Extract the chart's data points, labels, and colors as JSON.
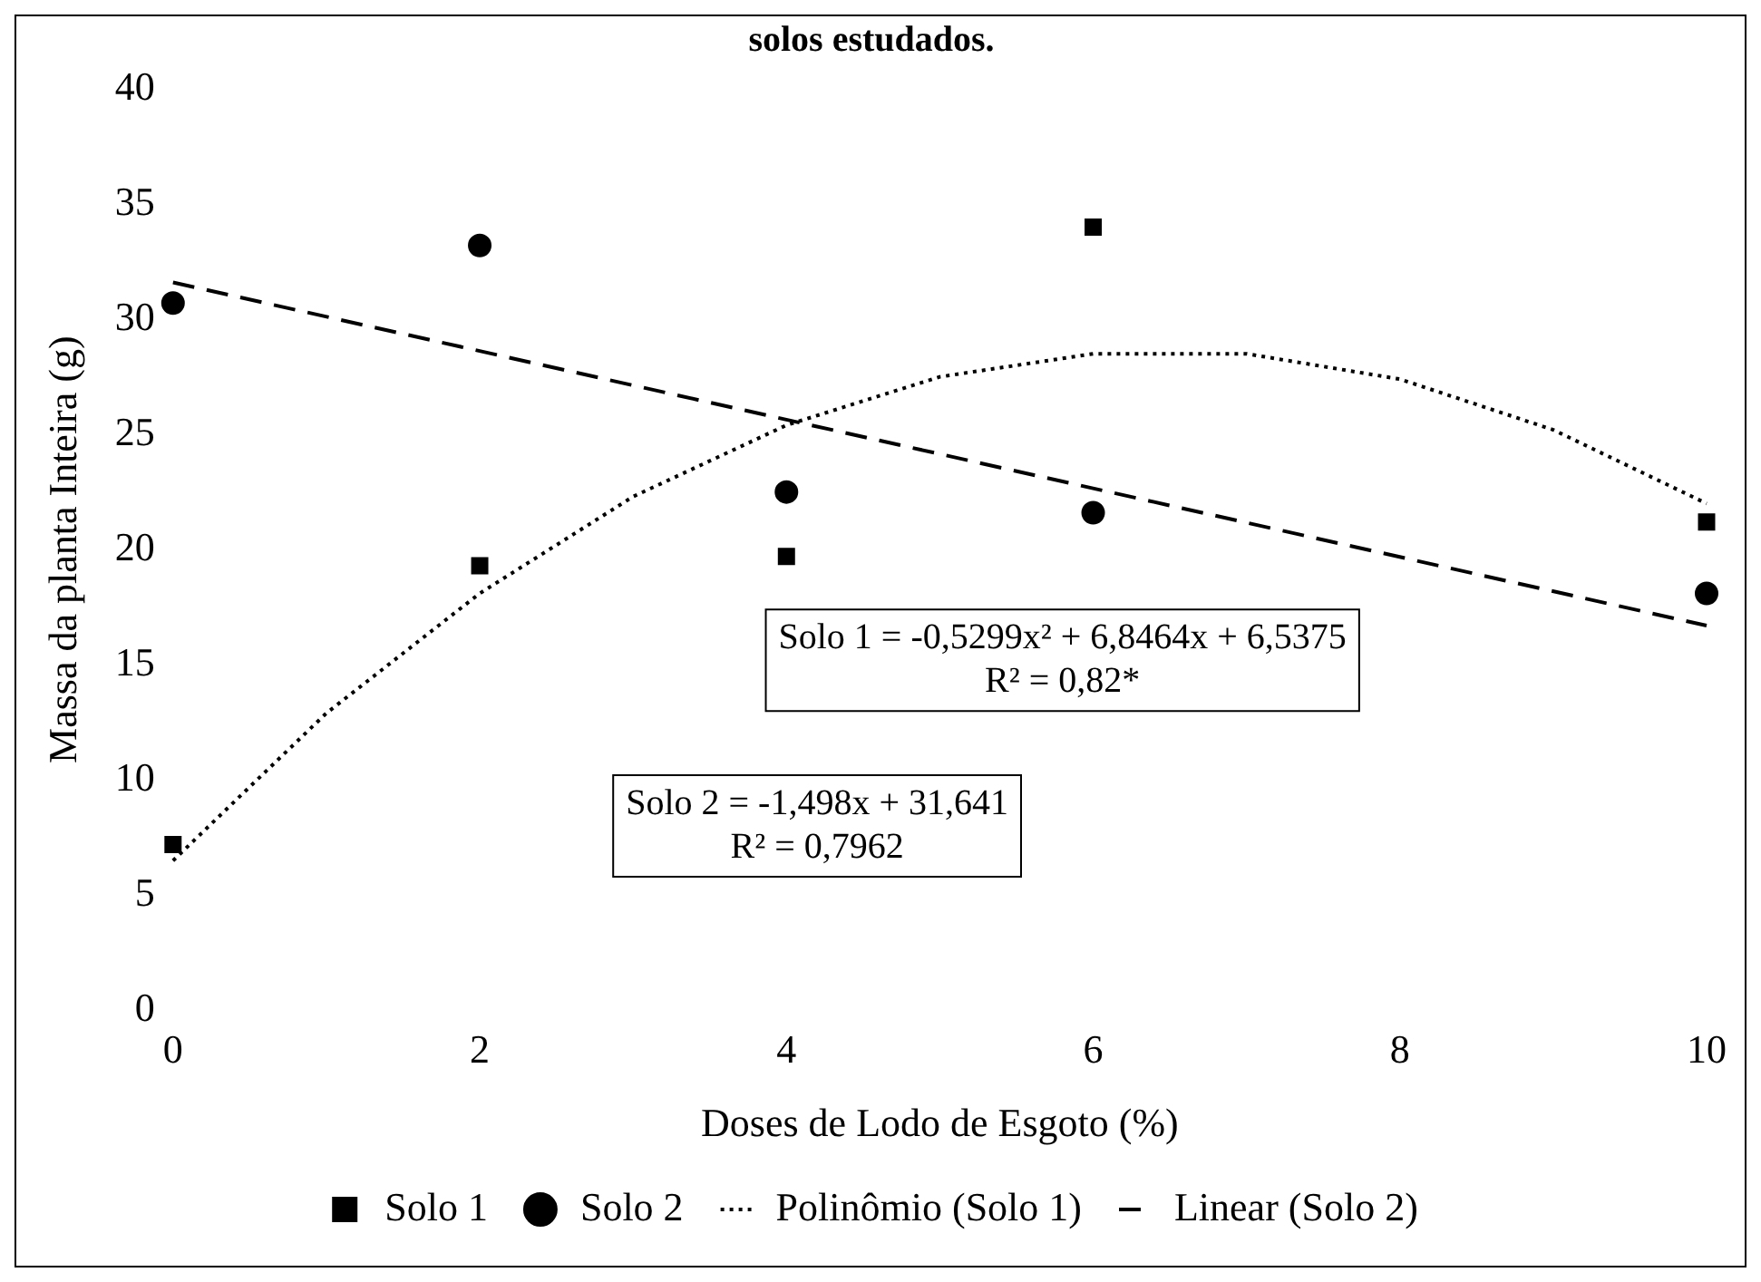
{
  "chart_data": {
    "type": "scatter",
    "title": "solos estudados.",
    "xlabel": "Doses de Lodo de Esgoto (%)",
    "ylabel": "Massa da planta Inteira (g)",
    "xlim": [
      0,
      10
    ],
    "ylim": [
      0,
      40
    ],
    "xticks": [
      0,
      2,
      4,
      6,
      8,
      10
    ],
    "yticks": [
      0,
      5,
      10,
      15,
      20,
      25,
      30,
      35,
      40
    ],
    "grid": false,
    "legend": "bottom",
    "series": [
      {
        "name": "Solo 1",
        "marker": "square",
        "color": "#000000",
        "x": [
          0,
          2,
          4,
          6,
          10
        ],
        "values": [
          7.2,
          19.3,
          19.7,
          34.0,
          21.2
        ]
      },
      {
        "name": "Solo 2",
        "marker": "circle",
        "color": "#000000",
        "x": [
          0,
          2,
          4,
          6,
          10
        ],
        "values": [
          30.7,
          33.2,
          22.5,
          21.6,
          18.1
        ]
      },
      {
        "name": "Polinômio (Solo 1)",
        "type": "line",
        "marker": "none",
        "line_style": "dotted",
        "color": "#000000",
        "x": [
          0,
          1,
          2,
          3,
          4,
          5,
          6,
          7,
          8,
          9,
          10
        ],
        "values": [
          6.5,
          12.9,
          18.1,
          22.3,
          25.4,
          27.5,
          28.5,
          28.5,
          27.4,
          25.2,
          22.0
        ]
      },
      {
        "name": "Linear (Solo 2)",
        "type": "line",
        "marker": "none",
        "line_style": "dashed",
        "color": "#000000",
        "x": [
          0,
          10
        ],
        "values": [
          31.6,
          16.7
        ]
      }
    ],
    "annotations": [
      "Solo 1 = -0,5299x² + 6,8464x + 6,5375\nR² = 0,82*",
      "Solo 2 = -1,498x + 31,641\nR² = 0,7962"
    ]
  }
}
